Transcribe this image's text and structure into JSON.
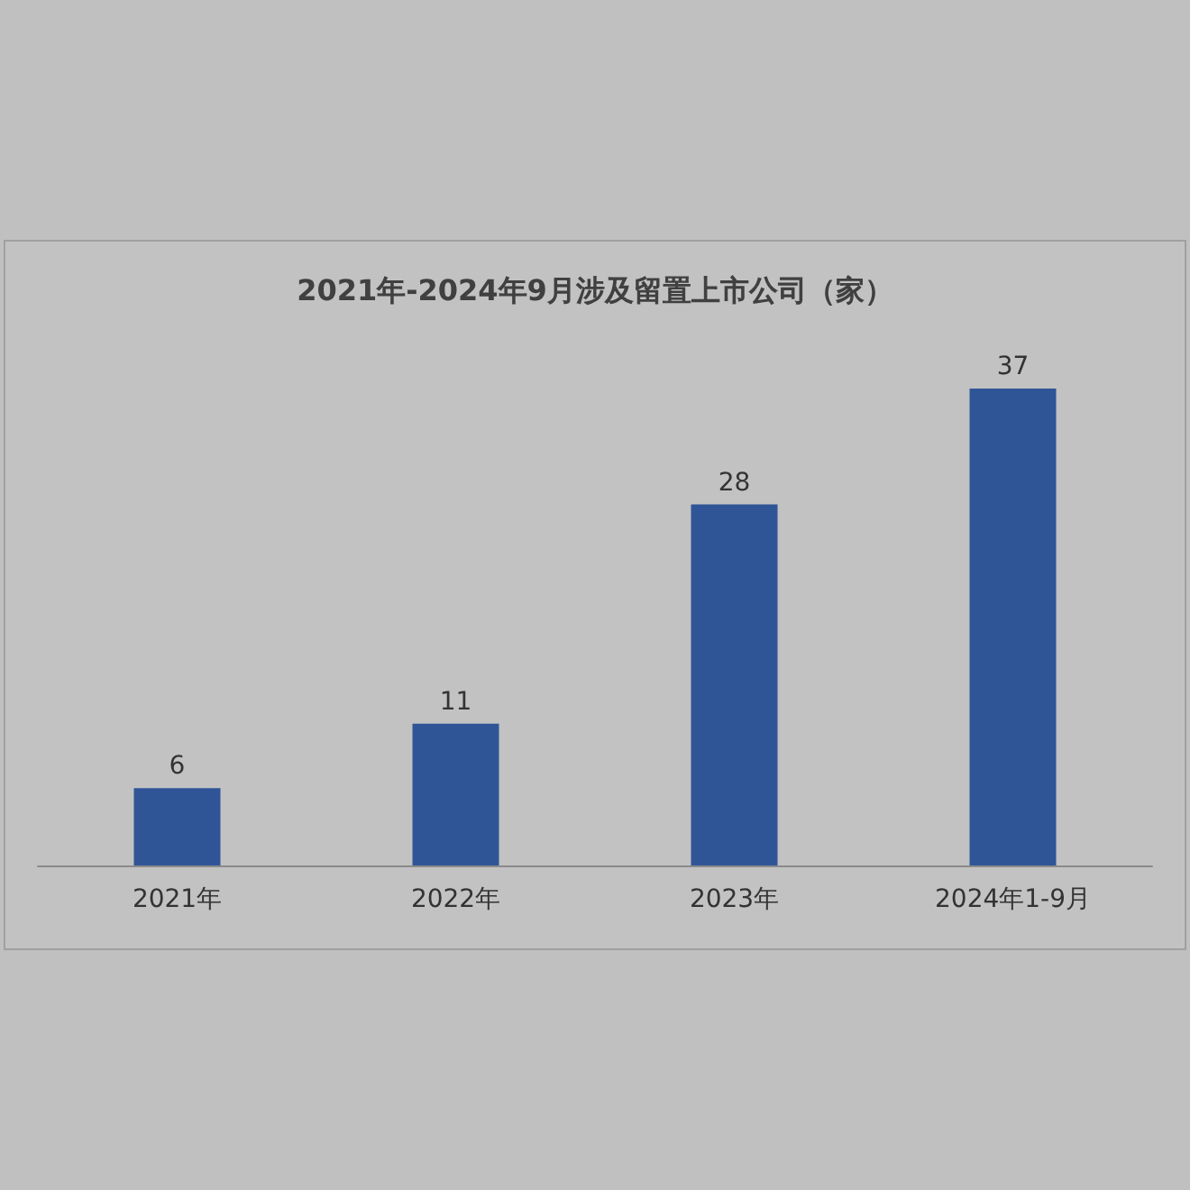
{
  "chart_data": {
    "type": "bar",
    "title": "2021年-2024年9月涉及留置上市公司（家）",
    "categories": [
      "2021年",
      "2022年",
      "2023年",
      "2024年1-9月"
    ],
    "values": [
      6,
      11,
      28,
      37
    ],
    "color": "#2f5597",
    "data_labels": true
  }
}
